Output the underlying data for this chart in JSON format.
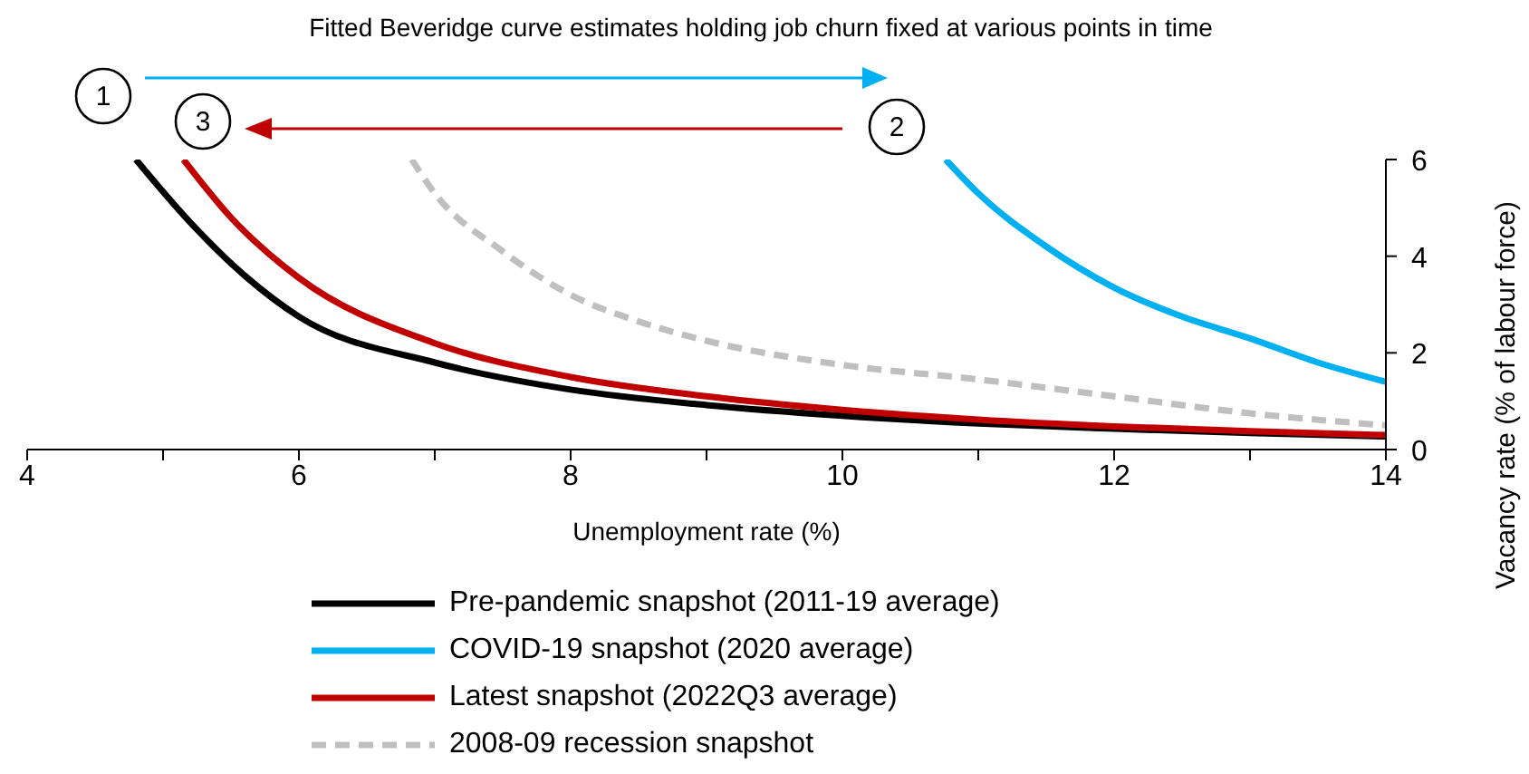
{
  "chart_data": {
    "type": "line",
    "title": "Fitted Beveridge curve estimates holding job churn fixed at various points in time",
    "xlabel": "Unemployment rate (%)",
    "ylabel": "Vacancy rate (% of labour force)",
    "xlim": [
      4,
      14
    ],
    "xticks": [
      4,
      {
        "value": 5,
        "label": null
      },
      6,
      {
        "value": 7,
        "label": null
      },
      8,
      {
        "value": 9,
        "label": null
      },
      10,
      {
        "value": 11,
        "label": null
      },
      12,
      {
        "value": 13,
        "label": null
      },
      14
    ],
    "ylim": [
      0,
      6
    ],
    "yticks": [
      0,
      2,
      4,
      6
    ],
    "grid": false,
    "legend": "bottom",
    "marker": "none",
    "line_style": "solid",
    "annotations": [
      "1",
      "2",
      "3"
    ],
    "series": [
      {
        "name": "Pre-pandemic snapshot (2011-19 average)",
        "color": "#000000",
        "x": [
          4.8,
          5.2,
          5.6,
          6,
          7,
          8,
          9,
          10,
          11,
          12,
          13,
          14
        ],
        "values": [
          6,
          4.7,
          3.6,
          2.75,
          1.8,
          1.24,
          0.92,
          0.7,
          0.54,
          0.43,
          0.34,
          0.27
        ]
      },
      {
        "name": "COVID-19 snapshot (2020 average)",
        "color": "#00b0f0",
        "x": [
          10.76,
          11,
          11.5,
          12,
          12.5,
          13,
          13.5,
          14
        ],
        "values": [
          6,
          5.3,
          4.2,
          3.35,
          2.75,
          2.3,
          1.8,
          1.4
        ]
      },
      {
        "name": "Latest snapshot (2022Q3 average)",
        "color": "#c00000",
        "x": [
          5.15,
          5.5,
          6,
          7,
          8,
          9,
          10,
          11,
          12,
          13,
          14
        ],
        "values": [
          6,
          4.8,
          3.55,
          2.2,
          1.5,
          1.1,
          0.82,
          0.62,
          0.48,
          0.38,
          0.3
        ]
      },
      {
        "name": "2008-09 recession snapshot",
        "color": "#bfbfbf",
        "line_style": "dashed",
        "x": [
          6.83,
          7,
          7.5,
          8,
          8.5,
          9,
          10,
          11,
          12,
          13,
          14
        ],
        "values": [
          6,
          5.3,
          4.1,
          3.2,
          2.65,
          2.25,
          1.75,
          1.45,
          1.1,
          0.75,
          0.5
        ]
      }
    ]
  }
}
